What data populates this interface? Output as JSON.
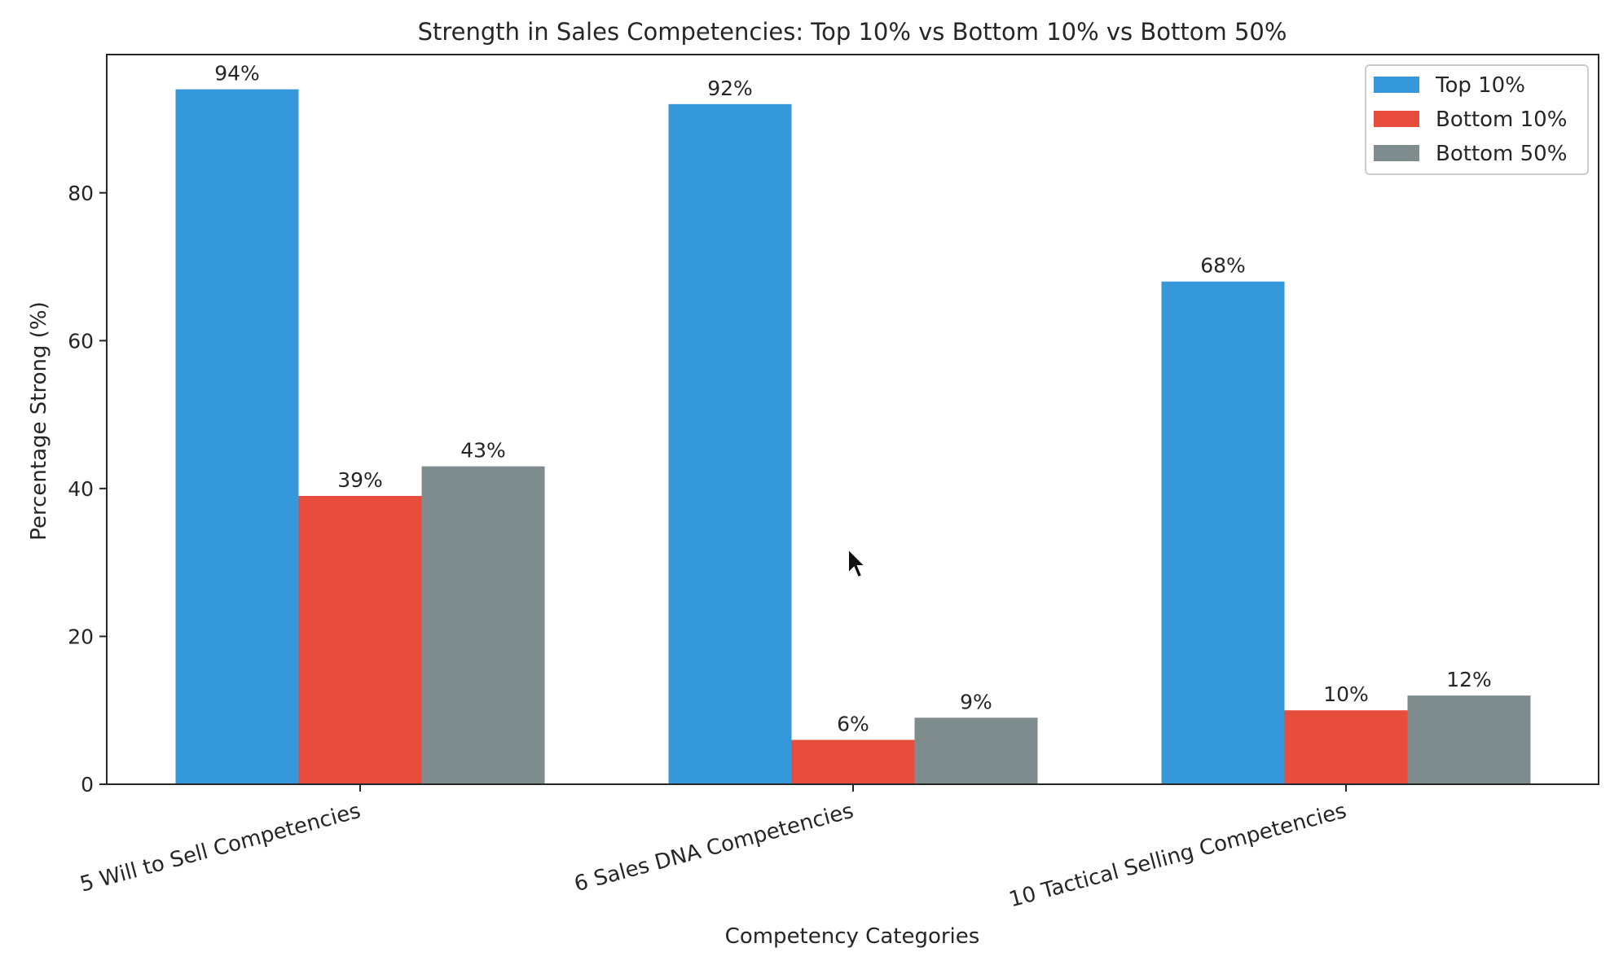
{
  "chart_data": {
    "type": "bar",
    "title": "Strength in Sales Competencies: Top 10% vs Bottom 10% vs Bottom 50%",
    "xlabel": "Competency Categories",
    "ylabel": "Percentage Strong (%)",
    "ylim": [
      0,
      98.7
    ],
    "yticks": [
      0,
      20,
      40,
      60,
      80
    ],
    "categories": [
      "5 Will to Sell Competencies",
      "6 Sales DNA Competencies",
      "10 Tactical Selling Competencies"
    ],
    "series": [
      {
        "name": "Top 10%",
        "color": "#3498db",
        "values": [
          94,
          92,
          68
        ],
        "labels": [
          "94%",
          "92%",
          "68%"
        ]
      },
      {
        "name": "Bottom 10%",
        "color": "#e74c3c",
        "values": [
          39,
          6,
          10
        ],
        "labels": [
          "39%",
          "6%",
          "10%"
        ]
      },
      {
        "name": "Bottom 50%",
        "color": "#7f8c8d",
        "values": [
          43,
          9,
          12
        ],
        "labels": [
          "43%",
          "9%",
          "12%"
        ]
      }
    ],
    "legend": "top-right",
    "grid": false,
    "x_tick_rotation_deg": 15
  }
}
